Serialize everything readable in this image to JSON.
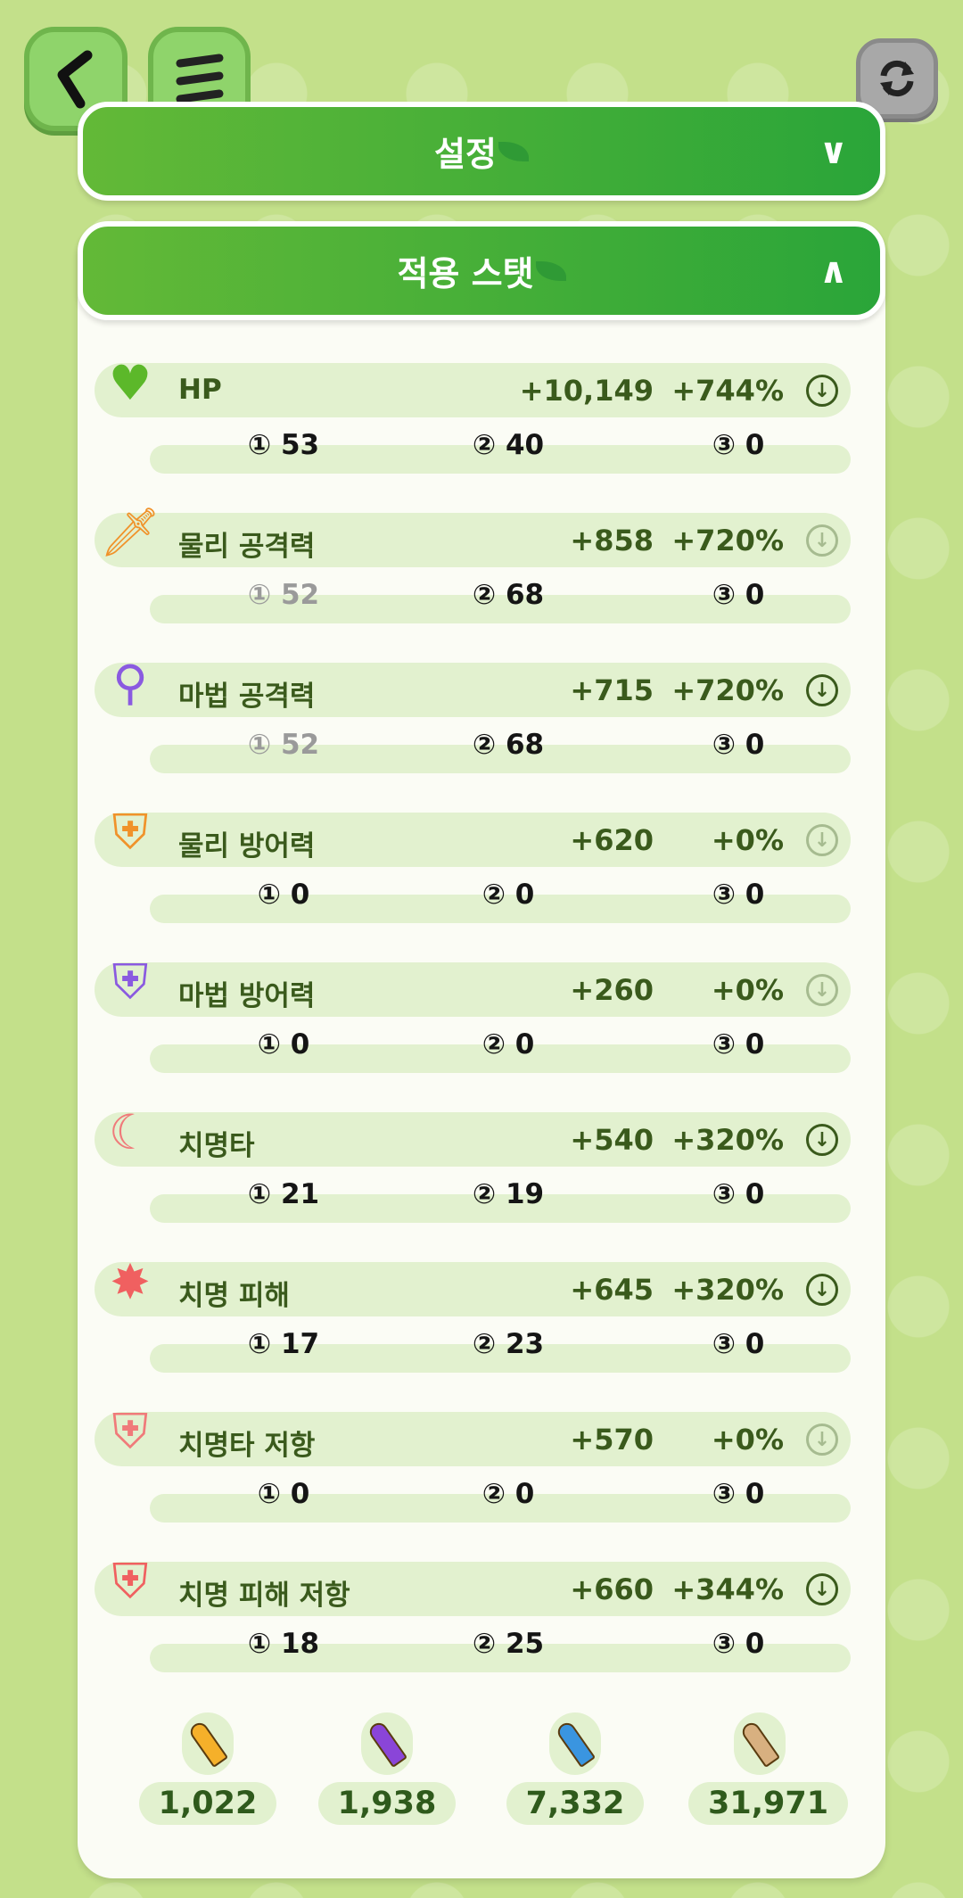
{
  "nav": {
    "back_icon": "chevron-left-icon",
    "menu_icon": "hamburger-icon",
    "refresh_icon": "refresh-icon"
  },
  "sections": {
    "settings": {
      "title": "설정",
      "chevron": "∨"
    },
    "stats": {
      "title": "적용 스탯",
      "chevron": "∧"
    }
  },
  "stats": [
    {
      "name": "HP",
      "icon": "heart-icon",
      "glyph": "♥",
      "color": "#5cb82a",
      "value": "+10,149",
      "percent": "+744%",
      "arrow_faded": false,
      "sub": [
        "① 53",
        "② 40",
        "③ 0"
      ],
      "sub_faded": [
        false,
        false,
        false
      ]
    },
    {
      "name": "물리 공격력",
      "icon": "sword-icon",
      "glyph": "🗡",
      "color": "#f0922a",
      "value": "+858",
      "percent": "+720%",
      "arrow_faded": true,
      "sub": [
        "① 52",
        "② 68",
        "③ 0"
      ],
      "sub_faded": [
        true,
        false,
        false
      ]
    },
    {
      "name": "마법 공격력",
      "icon": "magic-staff-icon",
      "glyph": "⚲",
      "color": "#8a5ae0",
      "value": "+715",
      "percent": "+720%",
      "arrow_faded": false,
      "sub": [
        "① 52",
        "② 68",
        "③ 0"
      ],
      "sub_faded": [
        true,
        false,
        false
      ]
    },
    {
      "name": "물리 방어력",
      "icon": "physical-shield-icon",
      "glyph": "⛨",
      "color": "#f0922a",
      "value": "+620",
      "percent": "+0%",
      "arrow_faded": true,
      "sub": [
        "① 0",
        "② 0",
        "③ 0"
      ],
      "sub_faded": [
        false,
        false,
        false
      ]
    },
    {
      "name": "마법 방어력",
      "icon": "magic-shield-icon",
      "glyph": "⛨",
      "color": "#8a5ae0",
      "value": "+260",
      "percent": "+0%",
      "arrow_faded": true,
      "sub": [
        "① 0",
        "② 0",
        "③ 0"
      ],
      "sub_faded": [
        false,
        false,
        false
      ]
    },
    {
      "name": "치명타",
      "icon": "claw-slash-icon",
      "glyph": "☾",
      "color": "#f07a7a",
      "value": "+540",
      "percent": "+320%",
      "arrow_faded": false,
      "sub": [
        "① 21",
        "② 19",
        "③ 0"
      ],
      "sub_faded": [
        false,
        false,
        false
      ]
    },
    {
      "name": "치명 피해",
      "icon": "burst-icon",
      "glyph": "✸",
      "color": "#f06060",
      "value": "+645",
      "percent": "+320%",
      "arrow_faded": false,
      "sub": [
        "① 17",
        "② 23",
        "③ 0"
      ],
      "sub_faded": [
        false,
        false,
        false
      ]
    },
    {
      "name": "치명타 저항",
      "icon": "crit-shield-icon",
      "glyph": "⛨",
      "color": "#f07a7a",
      "value": "+570",
      "percent": "+0%",
      "arrow_faded": true,
      "sub": [
        "① 0",
        "② 0",
        "③ 0"
      ],
      "sub_faded": [
        false,
        false,
        false
      ]
    },
    {
      "name": "치명 피해 저항",
      "icon": "crit-damage-shield-icon",
      "glyph": "⛨",
      "color": "#f06060",
      "value": "+660",
      "percent": "+344%",
      "arrow_faded": false,
      "sub": [
        "① 18",
        "② 25",
        "③ 0"
      ],
      "sub_faded": [
        false,
        false,
        false
      ]
    }
  ],
  "currencies": [
    {
      "icon": "orange-bullet-icon",
      "color": "#f5b02a",
      "amount": "1,022"
    },
    {
      "icon": "purple-bullet-icon",
      "color": "#8a45d8",
      "amount": "1,938"
    },
    {
      "icon": "blue-bullet-icon",
      "color": "#3a95e0",
      "amount": "7,332"
    },
    {
      "icon": "tan-bullet-icon",
      "color": "#d8b080",
      "amount": "31,971"
    }
  ]
}
